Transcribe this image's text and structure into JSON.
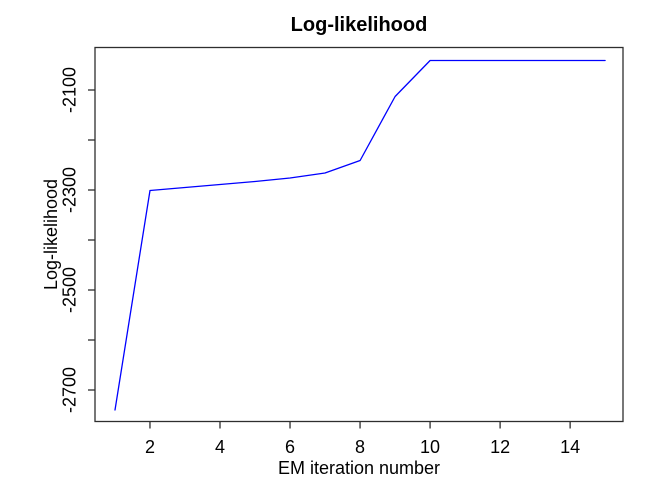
{
  "chart_data": {
    "type": "line",
    "title": "Log-likelihood",
    "xlabel": "EM iteration number",
    "ylabel": "Log-likelihood",
    "series": [
      {
        "name": "log-likelihood",
        "color": "#0000ff",
        "x": [
          1,
          2,
          3,
          4,
          5,
          6,
          7,
          8,
          9,
          10,
          11,
          12,
          13,
          14,
          15
        ],
        "y": [
          -2740,
          -2301,
          -2295,
          -2289,
          -2283,
          -2276,
          -2266,
          -2241,
          -2113,
          -2041,
          -2041,
          -2041,
          -2041,
          -2041,
          -2041
        ]
      }
    ],
    "x_ticks": {
      "values": [
        2,
        4,
        6,
        8,
        10,
        12,
        14
      ],
      "labels": [
        "2",
        "4",
        "6",
        "8",
        "10",
        "12",
        "14"
      ]
    },
    "y_ticks": {
      "values": [
        -2100,
        -2200,
        -2300,
        -2400,
        -2500,
        -2600,
        -2700
      ],
      "labels": [
        "-2100",
        "",
        "-2300",
        "",
        "-2500",
        "",
        "-2700"
      ]
    },
    "xlim": [
      0.43,
      15.51
    ],
    "ylim": [
      -2763,
      -2015
    ],
    "grid": false,
    "legend": "none",
    "colors": {
      "line": "#0000ff",
      "axis": "#2e2e2e",
      "text": "#000000",
      "background": "#ffffff"
    }
  }
}
